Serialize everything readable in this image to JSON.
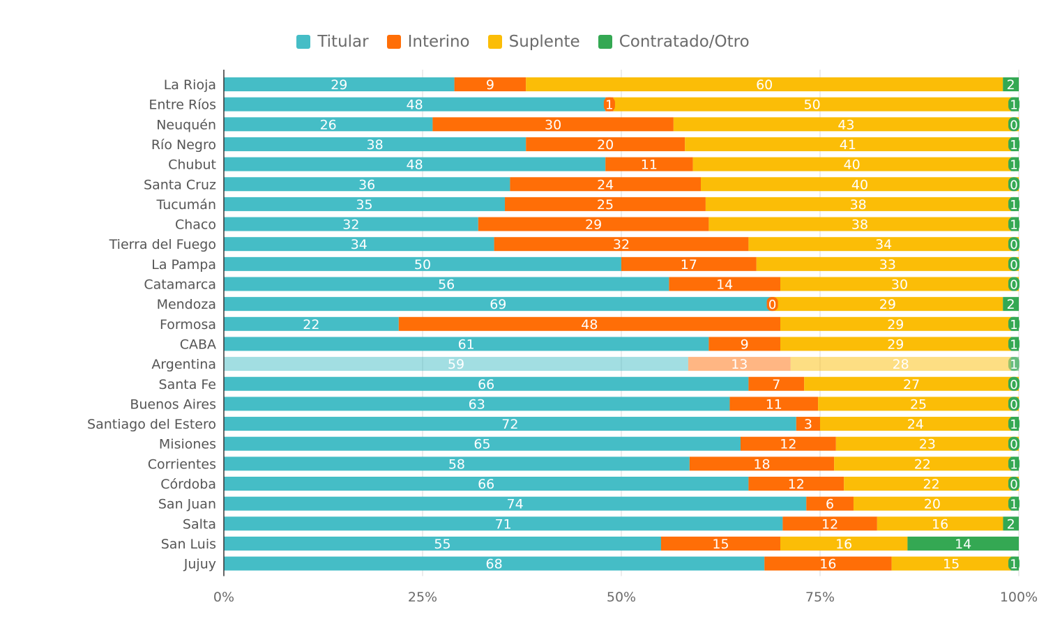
{
  "chart_data": {
    "type": "bar",
    "orientation": "horizontal",
    "stacked": "percent",
    "categories": [
      "La Rioja",
      "Entre Ríos",
      "Neuquén",
      "Río Negro",
      "Chubut",
      "Santa Cruz",
      "Tucumán",
      "Chaco",
      "Tierra del Fuego",
      "La Pampa",
      "Catamarca",
      "Mendoza",
      "Formosa",
      "CABA",
      "Argentina",
      "Santa Fe",
      "Buenos Aires",
      "Santiago del Estero",
      "Misiones",
      "Corrientes",
      "Córdoba",
      "San Juan",
      "Salta",
      "San Luis",
      "Jujuy"
    ],
    "series": [
      {
        "name": "Titular",
        "color": "#45bdc6",
        "values": [
          29,
          48,
          26,
          38,
          48,
          36,
          35,
          32,
          34,
          50,
          56,
          69,
          22,
          61,
          59,
          66,
          63,
          72,
          65,
          58,
          66,
          74,
          71,
          55,
          68
        ]
      },
      {
        "name": "Interino",
        "color": "#ff6e07",
        "values": [
          9,
          1,
          30,
          20,
          11,
          24,
          25,
          29,
          32,
          17,
          14,
          0,
          48,
          9,
          13,
          7,
          11,
          3,
          12,
          18,
          12,
          6,
          12,
          15,
          16
        ]
      },
      {
        "name": "Suplente",
        "color": "#fbbd07",
        "values": [
          60,
          50,
          43,
          41,
          40,
          40,
          38,
          38,
          34,
          33,
          30,
          29,
          29,
          29,
          28,
          27,
          25,
          24,
          23,
          22,
          22,
          20,
          16,
          16,
          15
        ]
      },
      {
        "name": "Contratado/Otro",
        "color": "#34a853",
        "values": [
          2,
          1,
          0,
          1,
          1,
          0,
          1,
          1,
          0,
          0,
          0,
          2,
          1,
          1,
          1,
          0,
          0,
          1,
          0,
          1,
          0,
          1,
          2,
          14,
          1
        ]
      }
    ],
    "highlight_category": "Argentina",
    "xlim": [
      0,
      100
    ],
    "xticks": [
      "0%",
      "25%",
      "50%",
      "75%",
      "100%"
    ],
    "legend_position": "top-center",
    "grid": true
  }
}
